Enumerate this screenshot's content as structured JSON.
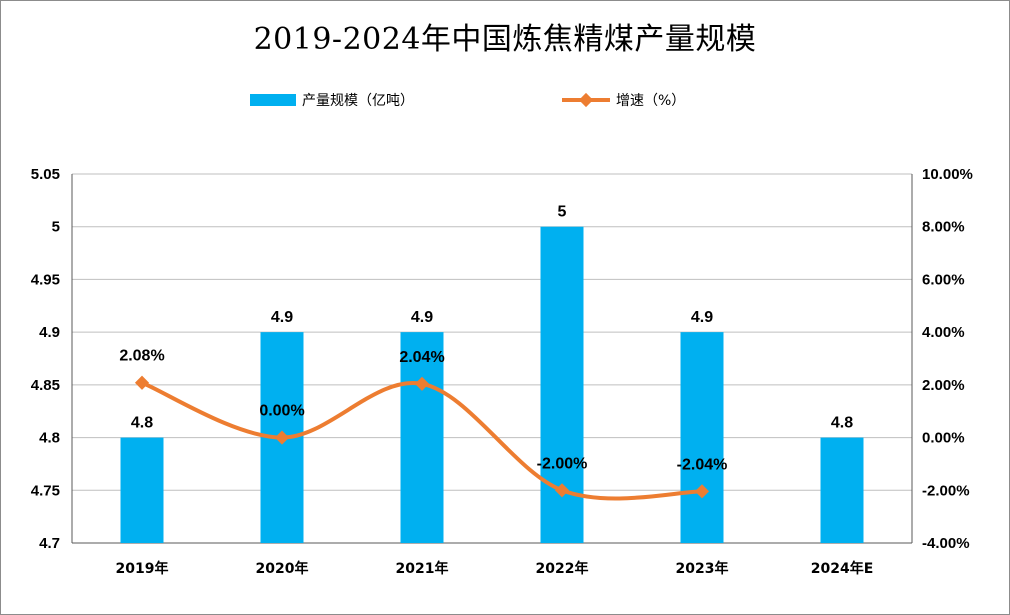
{
  "title": "2019-2024年中国炼焦精煤产量规模",
  "legend": {
    "bar_label": "产量规模（亿吨）",
    "line_label": "增速（%）"
  },
  "colors": {
    "bar": "#00B0F0",
    "line": "#ED7D31",
    "grid": "#bfbfbf",
    "axis": "#595959"
  },
  "chart_data": {
    "type": "bar",
    "title": "2019-2024年中国炼焦精煤产量规模",
    "categories": [
      "2019年",
      "2020年",
      "2021年",
      "2022年",
      "2023年",
      "2024年E"
    ],
    "series": [
      {
        "name": "产量规模（亿吨）",
        "type": "bar",
        "axis": "left",
        "values": [
          4.8,
          4.9,
          4.9,
          5,
          4.9,
          4.8
        ],
        "labels": [
          "4.8",
          "4.9",
          "4.9",
          "5",
          "4.9",
          "4.8"
        ]
      },
      {
        "name": "增速（%）",
        "type": "line",
        "axis": "right",
        "smooth": true,
        "values": [
          2.08,
          0.0,
          2.04,
          -2.0,
          -2.04,
          null
        ],
        "labels": [
          "2.08%",
          "0.00%",
          "2.04%",
          "-2.00%",
          "-2.04%",
          ""
        ]
      }
    ],
    "y_left": {
      "min": 4.7,
      "max": 5.05,
      "step": 0.05,
      "tick_labels": [
        "4.7",
        "4.75",
        "4.8",
        "4.85",
        "4.9",
        "4.95",
        "5",
        "5.05"
      ]
    },
    "y_right": {
      "min": -4,
      "max": 10,
      "step": 2,
      "tick_labels": [
        "-4.00%",
        "-2.00%",
        "0.00%",
        "2.00%",
        "4.00%",
        "6.00%",
        "8.00%",
        "10.00%"
      ]
    },
    "grid": true,
    "legend_position": "top"
  }
}
